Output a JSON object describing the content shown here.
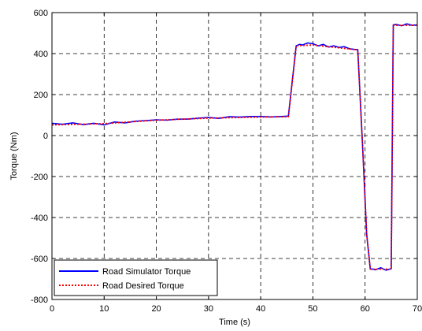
{
  "chart_data": {
    "type": "line",
    "title": "",
    "xlabel": "Time (s)",
    "ylabel": "Torque (Nm)",
    "xlim": [
      0,
      70
    ],
    "ylim": [
      -800,
      600
    ],
    "xticks": [
      0,
      10,
      20,
      30,
      40,
      50,
      60,
      70
    ],
    "yticks": [
      -800,
      -600,
      -400,
      -200,
      0,
      200,
      400,
      600
    ],
    "xtick_labels": [
      "0",
      "10",
      "20",
      "30",
      "40",
      "50",
      "60",
      "70"
    ],
    "ytick_labels": [
      "-800",
      "-600",
      "-400",
      "-200",
      "0",
      "200",
      "400",
      "600"
    ],
    "grid": true,
    "legend_position": "bottom-left",
    "series": [
      {
        "name": "Road Simulator Torque",
        "color": "#0000ff",
        "style": "solid",
        "x": [
          0,
          2,
          4,
          6,
          8,
          10,
          12,
          14,
          16,
          18,
          20,
          22,
          24,
          26,
          28,
          30,
          32,
          34,
          36,
          38,
          40,
          42,
          44,
          45.3,
          46.8,
          47.5,
          48,
          49,
          50,
          51,
          52,
          53,
          54,
          55,
          56,
          57,
          58,
          58.6,
          59.5,
          60.3,
          61,
          62,
          63,
          64,
          65,
          65.4,
          66,
          67,
          68,
          69,
          70
        ],
        "y": [
          60,
          55,
          62,
          53,
          60,
          52,
          66,
          62,
          70,
          73,
          77,
          75,
          80,
          80,
          85,
          88,
          84,
          92,
          90,
          93,
          93,
          91,
          93,
          95,
          438,
          445,
          442,
          452,
          448,
          438,
          445,
          432,
          438,
          430,
          434,
          424,
          420,
          420,
          -40,
          -480,
          -650,
          -655,
          -645,
          -657,
          -650,
          540,
          542,
          536,
          545,
          538,
          540
        ]
      },
      {
        "name": "Road Desired Torque",
        "color": "#ff0000",
        "style": "dotted",
        "x": [
          0,
          10,
          20,
          30,
          40,
          45.3,
          46.8,
          50,
          55,
          58.6,
          59.5,
          60.3,
          61,
          65,
          65.4,
          70
        ],
        "y": [
          52,
          58,
          75,
          85,
          90,
          92,
          438,
          442,
          428,
          418,
          -40,
          -480,
          -652,
          -652,
          538,
          538
        ]
      }
    ]
  }
}
